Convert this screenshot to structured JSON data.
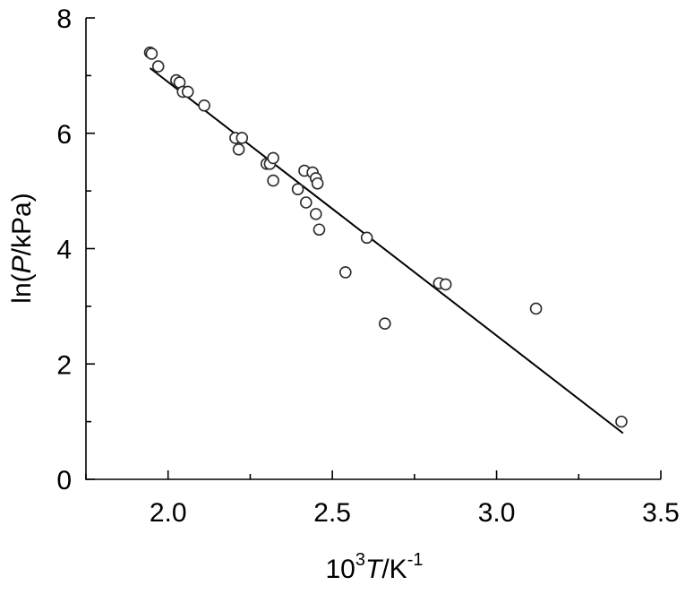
{
  "chart_data": {
    "type": "scatter",
    "title": "",
    "xlabel": {
      "base": "10",
      "sup1": "3",
      "italic": "T",
      "mid": "/K",
      "sup2": "-1"
    },
    "ylabel": {
      "pre": "ln(",
      "italic": "P",
      "post": "/kPa)"
    },
    "xlim": [
      1.75,
      3.5
    ],
    "ylim": [
      0,
      8
    ],
    "x_major_ticks": [
      2.0,
      2.5,
      3.0,
      3.5
    ],
    "x_minor_ticks": [
      1.75,
      2.25,
      2.75,
      3.25
    ],
    "y_major_ticks": [
      0,
      2,
      4,
      6,
      8
    ],
    "y_minor_ticks": [
      1,
      3,
      5,
      7
    ],
    "x_tick_labels": [
      "2.0",
      "2.5",
      "3.0",
      "3.5"
    ],
    "y_tick_labels": [
      "0",
      "2",
      "4",
      "6",
      "8"
    ],
    "grid": false,
    "series": [
      {
        "points": [
          {
            "x": 1.945,
            "y": 7.4
          },
          {
            "x": 1.95,
            "y": 7.38
          },
          {
            "x": 1.97,
            "y": 7.16
          },
          {
            "x": 2.025,
            "y": 6.92
          },
          {
            "x": 2.035,
            "y": 6.88
          },
          {
            "x": 2.045,
            "y": 6.72
          },
          {
            "x": 2.06,
            "y": 6.72
          },
          {
            "x": 2.11,
            "y": 6.48
          },
          {
            "x": 2.205,
            "y": 5.92
          },
          {
            "x": 2.215,
            "y": 5.72
          },
          {
            "x": 2.225,
            "y": 5.92
          },
          {
            "x": 2.3,
            "y": 5.47
          },
          {
            "x": 2.31,
            "y": 5.47
          },
          {
            "x": 2.32,
            "y": 5.57
          },
          {
            "x": 2.32,
            "y": 5.18
          },
          {
            "x": 2.395,
            "y": 5.03
          },
          {
            "x": 2.415,
            "y": 5.35
          },
          {
            "x": 2.42,
            "y": 4.8
          },
          {
            "x": 2.44,
            "y": 5.32
          },
          {
            "x": 2.45,
            "y": 5.22
          },
          {
            "x": 2.455,
            "y": 5.13
          },
          {
            "x": 2.45,
            "y": 4.6
          },
          {
            "x": 2.46,
            "y": 4.33
          },
          {
            "x": 2.54,
            "y": 3.59
          },
          {
            "x": 2.605,
            "y": 4.19
          },
          {
            "x": 2.66,
            "y": 2.7
          },
          {
            "x": 2.825,
            "y": 3.4
          },
          {
            "x": 2.845,
            "y": 3.38
          },
          {
            "x": 3.12,
            "y": 2.96
          },
          {
            "x": 3.38,
            "y": 1.0
          }
        ]
      }
    ],
    "fit_line": {
      "x": [
        1.945,
        3.385
      ],
      "y": [
        7.13,
        0.8
      ]
    }
  }
}
